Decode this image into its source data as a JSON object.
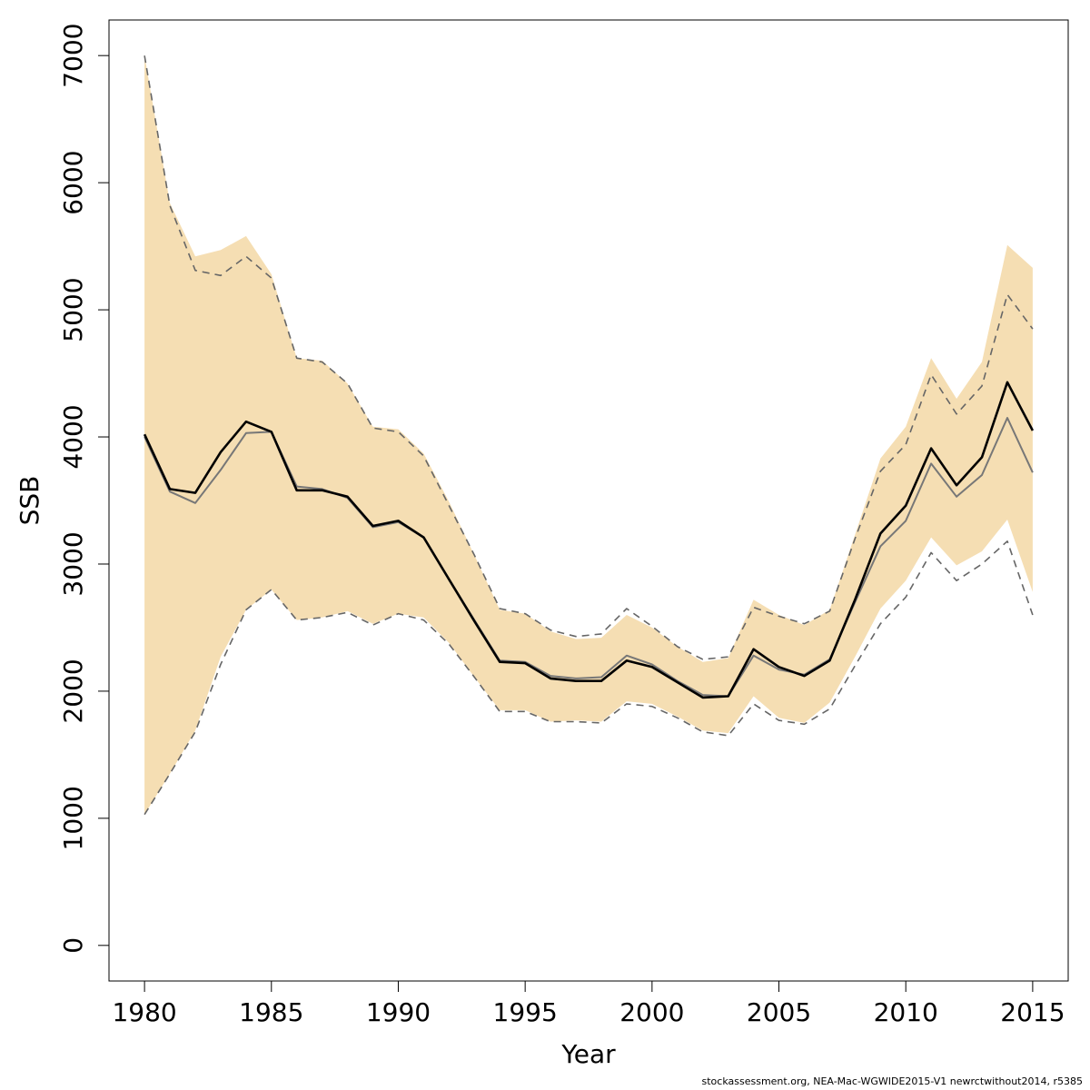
{
  "chart_data": {
    "type": "line",
    "title": "",
    "xlabel": "Year",
    "ylabel": "SSB",
    "xlim": [
      1978.6,
      2016.4
    ],
    "ylim": [
      -280,
      7280
    ],
    "xticks": [
      1980,
      1985,
      1990,
      1995,
      2000,
      2005,
      2010,
      2015
    ],
    "yticks": [
      0,
      1000,
      2000,
      3000,
      4000,
      5000,
      6000,
      7000
    ],
    "grid": false,
    "legend": "none",
    "colors": {
      "band": "#f5deb3",
      "main": "#000000",
      "secondary": "#777777",
      "dashed": "#666666"
    },
    "x": [
      1980,
      1981,
      1982,
      1983,
      1984,
      1985,
      1986,
      1987,
      1988,
      1989,
      1990,
      1991,
      1992,
      1993,
      1994,
      1995,
      1996,
      1997,
      1998,
      1999,
      2000,
      2001,
      2002,
      2003,
      2004,
      2005,
      2006,
      2007,
      2008,
      2009,
      2010,
      2011,
      2012,
      2013,
      2014,
      2015
    ],
    "band": {
      "upper": [
        7000,
        5840,
        5420,
        5470,
        5580,
        5280,
        4620,
        4600,
        4420,
        4080,
        4060,
        3870,
        3490,
        3070,
        2640,
        2610,
        2470,
        2410,
        2420,
        2600,
        2500,
        2350,
        2230,
        2260,
        2720,
        2600,
        2520,
        2640,
        3230,
        3830,
        4080,
        4620,
        4300,
        4590,
        5510,
        5330
      ],
      "lower": [
        1030,
        1350,
        1690,
        2270,
        2640,
        2800,
        2560,
        2580,
        2630,
        2530,
        2610,
        2580,
        2380,
        2110,
        1850,
        1850,
        1760,
        1770,
        1760,
        1920,
        1900,
        1800,
        1690,
        1670,
        1960,
        1790,
        1750,
        1910,
        2270,
        2650,
        2870,
        3210,
        2990,
        3100,
        3350,
        2780
      ]
    },
    "series": [
      {
        "name": "",
        "style": "solid-thick",
        "values": [
          4020,
          3590,
          3560,
          3880,
          4120,
          4040,
          3580,
          3580,
          3530,
          3300,
          3340,
          3210,
          2880,
          2550,
          2230,
          2220,
          2100,
          2080,
          2080,
          2240,
          2190,
          2070,
          1950,
          1960,
          2330,
          2190,
          2120,
          2240,
          2720,
          3240,
          3460,
          3910,
          3620,
          3840,
          4430,
          4050
        ]
      },
      {
        "name": "",
        "style": "solid-thin",
        "values": [
          4000,
          3570,
          3480,
          3740,
          4030,
          4040,
          3610,
          3590,
          3520,
          3290,
          3330,
          3210,
          2880,
          2560,
          2240,
          2230,
          2120,
          2100,
          2110,
          2280,
          2210,
          2080,
          1970,
          1960,
          2280,
          2170,
          2130,
          2250,
          2700,
          3140,
          3340,
          3790,
          3530,
          3700,
          4150,
          3720
        ]
      },
      {
        "name": "",
        "style": "dashed-upper",
        "values": [
          7000,
          5820,
          5310,
          5270,
          5420,
          5250,
          4620,
          4590,
          4420,
          4070,
          4040,
          3850,
          3460,
          3070,
          2650,
          2610,
          2480,
          2430,
          2450,
          2650,
          2510,
          2350,
          2250,
          2270,
          2660,
          2590,
          2530,
          2630,
          3200,
          3730,
          3940,
          4490,
          4180,
          4400,
          5120,
          4850
        ]
      },
      {
        "name": "",
        "style": "dashed-lower",
        "values": [
          1030,
          1350,
          1680,
          2210,
          2640,
          2800,
          2560,
          2580,
          2620,
          2520,
          2610,
          2560,
          2370,
          2110,
          1840,
          1840,
          1760,
          1760,
          1750,
          1900,
          1880,
          1790,
          1680,
          1650,
          1900,
          1770,
          1740,
          1860,
          2200,
          2530,
          2740,
          3090,
          2870,
          3000,
          3180,
          2600
        ]
      }
    ]
  },
  "footer": "stockassessment.org, NEA-Mac-WGWIDE2015-V1  newrctwithout2014, r5385"
}
